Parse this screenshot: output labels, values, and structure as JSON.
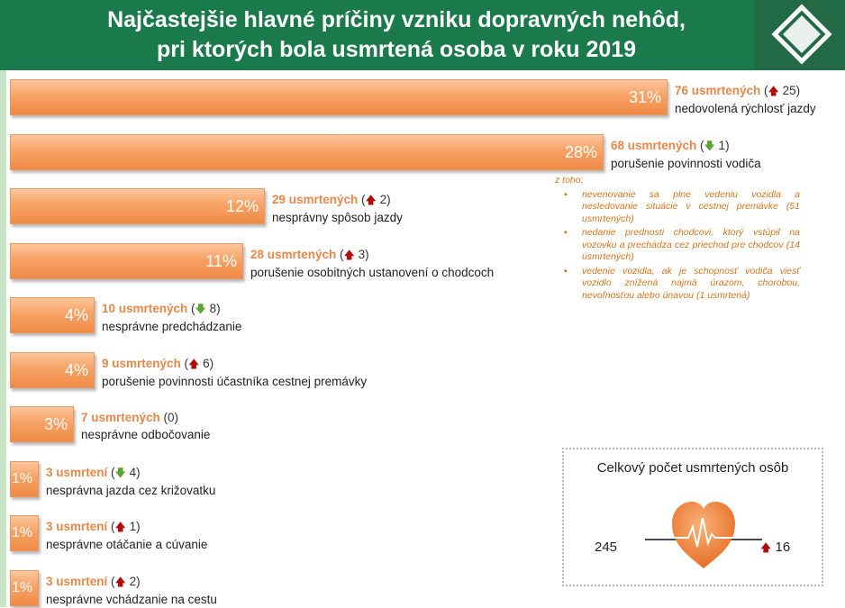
{
  "header": {
    "title_line1": "Najčastejšie hlavné príčiny vzniku dopravných nehôd,",
    "title_line2": "pri ktorých bola usmrtená osoba v roku 2019"
  },
  "colors": {
    "header_bg": "#1b7a4b",
    "bar": "#f7a366",
    "count_text": "#e8874a",
    "arrow_up": "#b00d0d",
    "arrow_down": "#5aa532"
  },
  "chart_data": {
    "type": "bar",
    "orientation": "horizontal",
    "categories": [
      "nedovolená rýchlosť jazdy",
      "porušenie povinnosti vodiča",
      "nesprávny spôsob jazdy",
      "porušenie osobitných ustanovení o chodcoch",
      "nesprávne predchádzanie",
      "porušenie povinnosti účastníka cestnej premávky",
      "nesprávne odbočovanie",
      "nesprávna jazda cez križovatku",
      "nesprávne otáčanie a cúvanie",
      "nesprávne vchádzanie na cestu"
    ],
    "values": [
      31,
      28,
      12,
      11,
      4,
      4,
      3,
      1,
      1,
      1
    ],
    "value_labels": [
      "31%",
      "28%",
      "12%",
      "11%",
      "4%",
      "4%",
      "3%",
      "1%",
      "1%",
      "1%"
    ],
    "counts": [
      "76 usmrtených",
      "68 usmrtených",
      "29 usmrtených",
      "28 usmrtených",
      "10 usmrtených",
      "9 usmrtených",
      "7 usmrtených",
      "3 usmrtení",
      "3 usmrtení",
      "3 usmrtení"
    ],
    "changes": [
      {
        "dir": "up",
        "value": "25"
      },
      {
        "dir": "down",
        "value": "1"
      },
      {
        "dir": "up",
        "value": "2"
      },
      {
        "dir": "up",
        "value": "3"
      },
      {
        "dir": "down",
        "value": "8"
      },
      {
        "dir": "up",
        "value": "6"
      },
      {
        "dir": "none",
        "value": "0"
      },
      {
        "dir": "down",
        "value": "4"
      },
      {
        "dir": "up",
        "value": "1"
      },
      {
        "dir": "up",
        "value": "2"
      }
    ]
  },
  "note": {
    "heading": "z toho:",
    "items": [
      "nevenovanie sa plne vedeniu vozidla a nesledovanie situácie v cestnej premávke (51 usmrtených)",
      "nedanie prednosti chodcovi, ktorý vstúpil na vozovku a prechádza cez priechod pre chodcov (14 usmrtených)",
      "vedenie vozidla, ak je schopnosť vodiča viesť vozidlo znížená najmä úrazom, chorobou, nevoľnosťou alebo únavou (1 usmrtená)"
    ]
  },
  "total": {
    "title": "Celkový počet usmrtených osôb",
    "value": "245",
    "change": "16",
    "change_dir": "up",
    "icon": "heart-icon"
  }
}
